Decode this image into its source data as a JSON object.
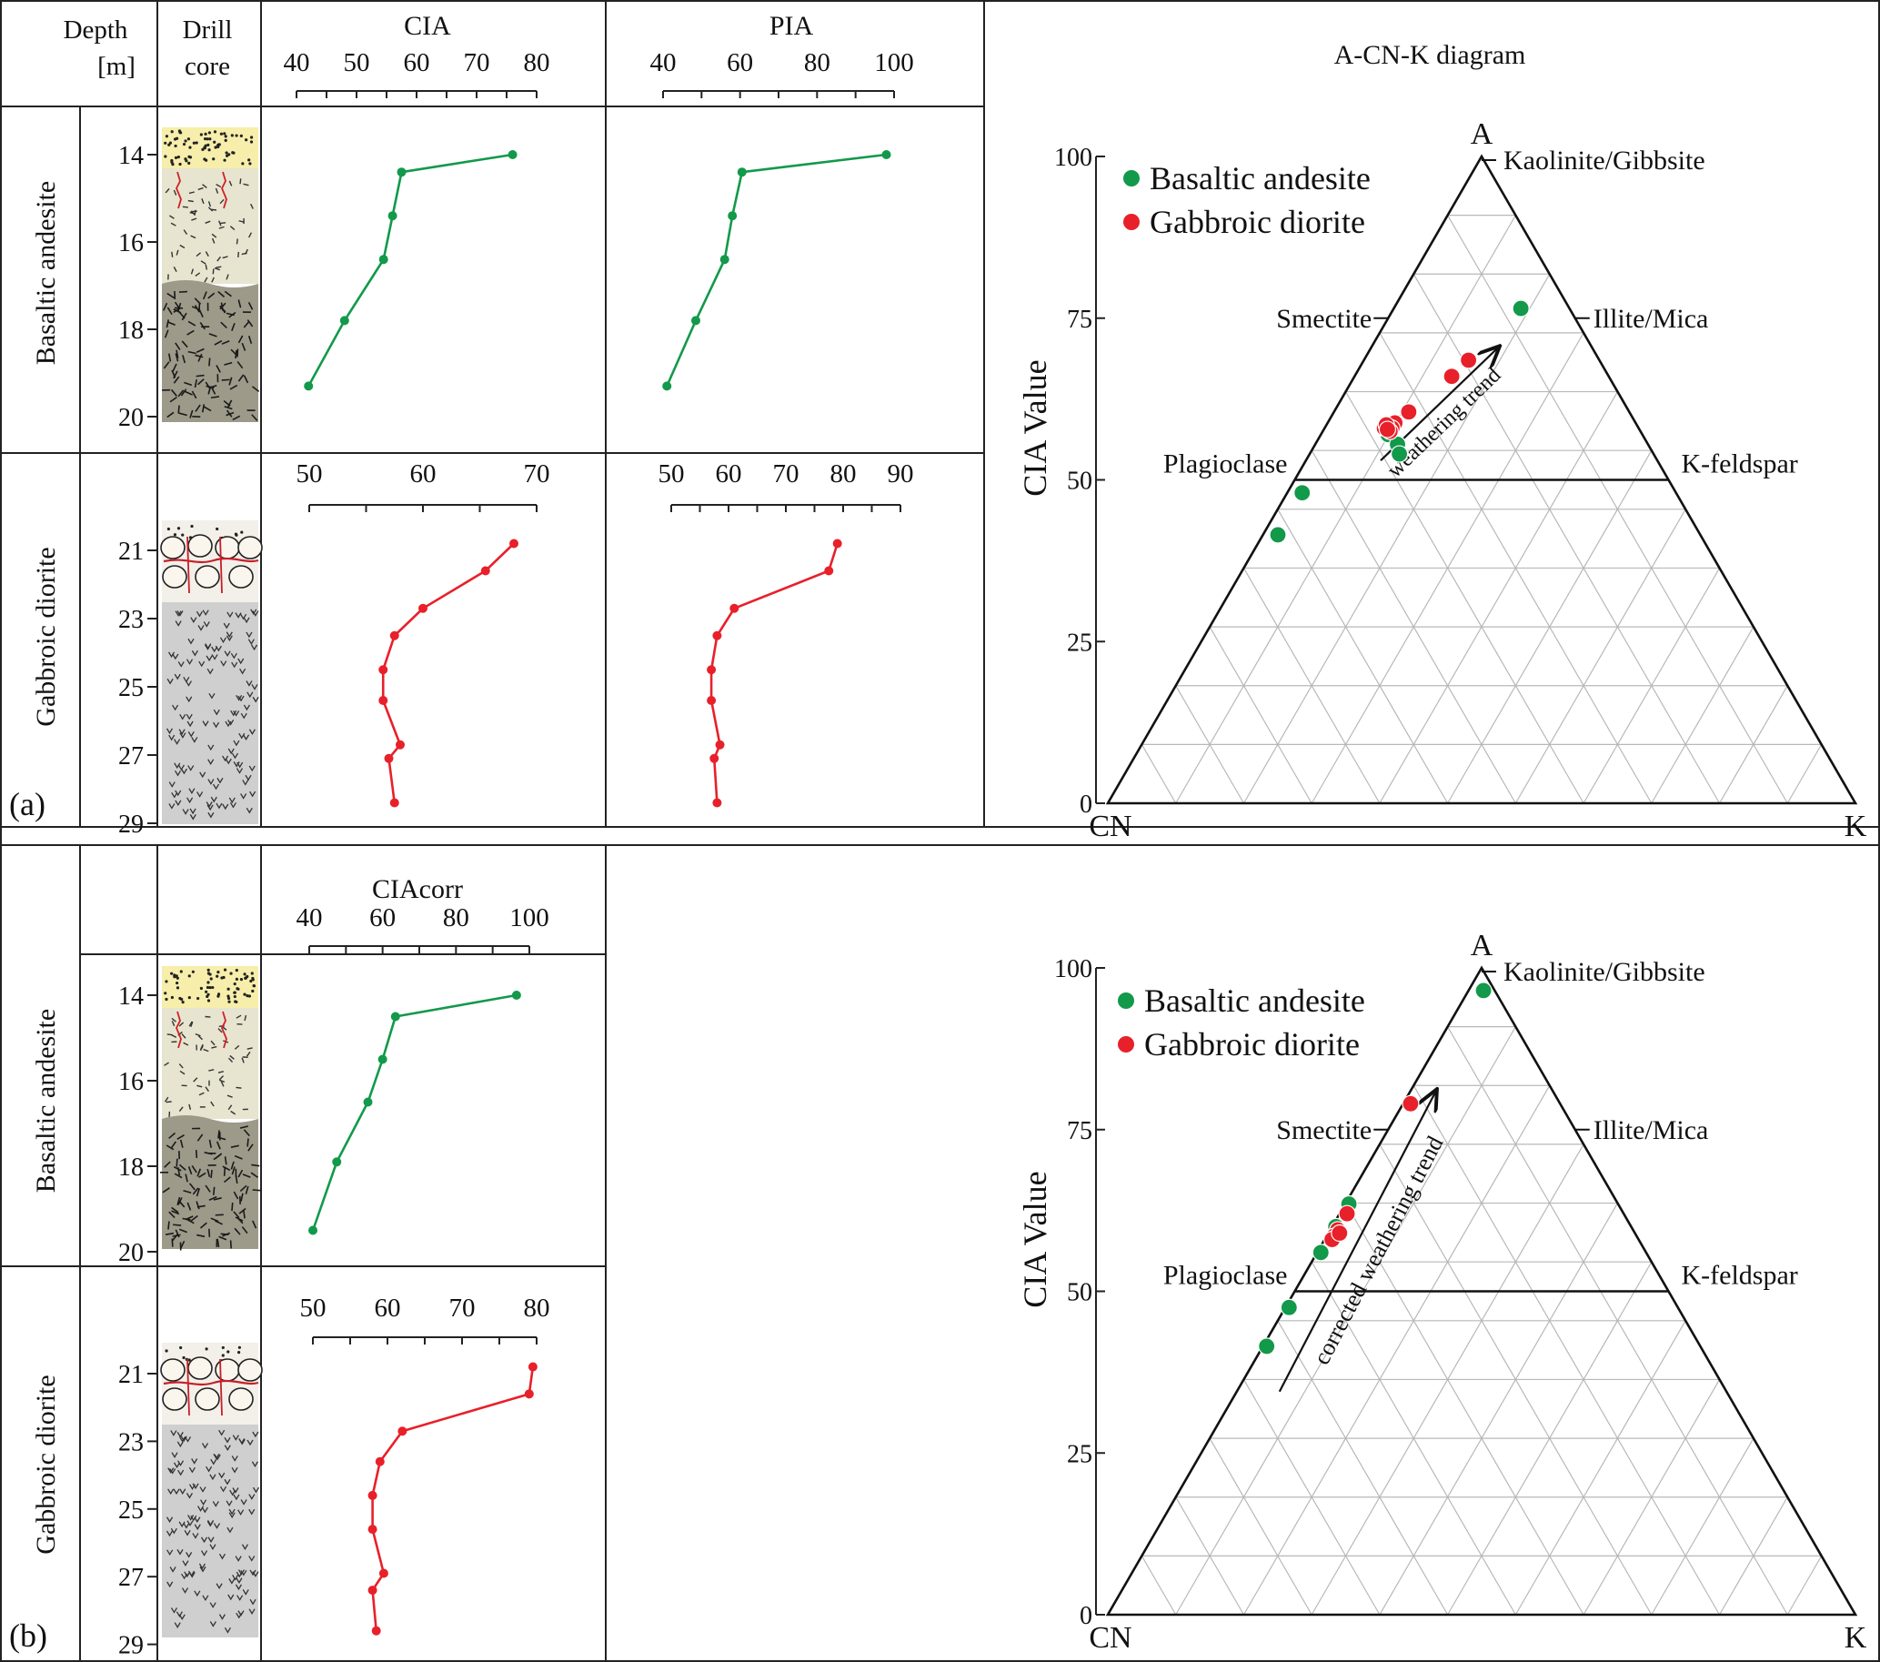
{
  "panel_a": {
    "label": "(a)",
    "headers": {
      "depth": "Depth",
      "depth_unit": "[m]",
      "core_line1": "Drill",
      "core_line2": "core",
      "cia": "CIA",
      "pia": "PIA",
      "ternary_title": "A-CN-K diagram"
    },
    "lithology": [
      "Basaltic andesite",
      "Gabbroic diorite"
    ]
  },
  "panel_b": {
    "label": "(b)",
    "headers": {
      "ciacorr": "CIAcorr"
    },
    "lithology": [
      "Basaltic andesite",
      "Gabbroic diorite"
    ]
  },
  "colors": {
    "basaltic": "#12994a",
    "gabbroic": "#e8202a",
    "sand": "#f6eeaa",
    "weathered": "#e7e5cf",
    "fresh_rock": "#9d9a8a",
    "diorite_rock": "#cfcfcf"
  },
  "depth_ticks": {
    "basaltic": [
      14,
      16,
      18,
      20
    ],
    "gabbroic": [
      21,
      23,
      25,
      27,
      29
    ]
  },
  "chart_data": [
    {
      "type": "line",
      "title": "CIA",
      "panel": "a",
      "ylabel": "Depth [m]",
      "tick_labels": [
        "40",
        "50",
        "60",
        "70",
        "80"
      ],
      "xlim": [
        40,
        80
      ],
      "series": [
        {
          "name": "Basaltic andesite",
          "x": [
            76,
            57.5,
            56,
            54.5,
            48,
            42
          ],
          "y": [
            14.0,
            14.4,
            15.4,
            16.4,
            17.8,
            19.3
          ]
        }
      ]
    },
    {
      "type": "line",
      "title": "PIA",
      "panel": "a",
      "tick_labels": [
        "40",
        "60",
        "80",
        "100"
      ],
      "xlim": [
        40,
        100
      ],
      "series": [
        {
          "name": "Basaltic andesite",
          "x": [
            98,
            60.5,
            58,
            56,
            48.5,
            41
          ],
          "y": [
            14.0,
            14.4,
            15.4,
            16.4,
            17.8,
            19.3
          ]
        }
      ]
    },
    {
      "type": "line",
      "title": "CIA",
      "panel": "a",
      "tick_labels": [
        "50",
        "60",
        "70"
      ],
      "xlim": [
        50,
        70
      ],
      "series": [
        {
          "name": "Gabbroic diorite",
          "x": [
            68,
            65.5,
            60,
            57.5,
            56.5,
            56.5,
            58,
            57,
            57.5
          ],
          "y": [
            20.8,
            21.6,
            22.7,
            23.5,
            24.5,
            25.4,
            26.7,
            27.1,
            28.4
          ]
        }
      ]
    },
    {
      "type": "line",
      "title": "PIA",
      "panel": "a",
      "tick_labels": [
        "50",
        "60",
        "70",
        "80",
        "90"
      ],
      "xlim": [
        50,
        90
      ],
      "series": [
        {
          "name": "Gabbroic diorite",
          "x": [
            79,
            77.5,
            61,
            58,
            57,
            57,
            58.5,
            57.5,
            58
          ],
          "y": [
            20.8,
            21.6,
            22.7,
            23.5,
            24.5,
            25.4,
            26.7,
            27.1,
            28.4
          ]
        }
      ]
    },
    {
      "type": "line",
      "title": "CIAcorr",
      "panel": "b",
      "ylabel": "Depth [m]",
      "tick_labels": [
        "40",
        "60",
        "80",
        "100"
      ],
      "xlim": [
        40,
        100
      ],
      "series": [
        {
          "name": "Basaltic andesite",
          "x": [
            96.5,
            63.5,
            60,
            56,
            47.5,
            41
          ],
          "y": [
            14.0,
            14.5,
            15.5,
            16.5,
            17.9,
            19.5
          ]
        }
      ]
    },
    {
      "type": "line",
      "title": "CIAcorr",
      "panel": "b",
      "tick_labels": [
        "50",
        "60",
        "70",
        "80"
      ],
      "xlim": [
        50,
        80
      ],
      "series": [
        {
          "name": "Gabbroic diorite",
          "x": [
            79.5,
            79,
            62,
            59,
            58,
            58,
            59.5,
            58,
            58.5
          ],
          "y": [
            20.8,
            21.6,
            22.7,
            23.6,
            24.6,
            25.6,
            26.9,
            27.4,
            28.6
          ]
        }
      ]
    },
    {
      "type": "scatter",
      "title": "A-CN-K diagram",
      "panel": "a",
      "ylabel": "CIA Value",
      "yticks": [
        0,
        25,
        50,
        75,
        100
      ],
      "vertices": {
        "top": "A",
        "left": "CN",
        "right": "K"
      },
      "mineral_labels": {
        "kaolinite": "Kaolinite/Gibbsite",
        "smectite": "Smectite",
        "illite": "Illite/Mica",
        "plagioclase": "Plagioclase",
        "kfeldspar": "K-feldspar"
      },
      "arrow_label": "weathering trend",
      "legend": [
        "Basaltic andesite",
        "Gabbroic diorite"
      ],
      "legend_position": "top-left",
      "series": [
        {
          "name": "Basaltic andesite",
          "points": [
            {
              "cia": 76.5,
              "k": 17
            },
            {
              "cia": 57,
              "k": 9
            },
            {
              "cia": 55.5,
              "k": 11
            },
            {
              "cia": 54,
              "k": 12
            },
            {
              "cia": 48,
              "k": 2
            },
            {
              "cia": 41.5,
              "k": 2
            }
          ]
        },
        {
          "name": "Gabbroic diorite",
          "points": [
            {
              "cia": 68.5,
              "k": 14
            },
            {
              "cia": 66,
              "k": 13
            },
            {
              "cia": 60.5,
              "k": 10
            },
            {
              "cia": 58.8,
              "k": 9
            },
            {
              "cia": 58,
              "k": 9
            },
            {
              "cia": 58,
              "k": 8
            },
            {
              "cia": 57.5,
              "k": 9
            },
            {
              "cia": 58.5,
              "k": 8
            },
            {
              "cia": 57.8,
              "k": 8.5
            }
          ]
        }
      ]
    },
    {
      "type": "scatter",
      "title": "",
      "panel": "b",
      "ylabel": "CIA Value",
      "yticks": [
        0,
        25,
        50,
        75,
        100
      ],
      "vertices": {
        "top": "A",
        "left": "CN",
        "right": "K"
      },
      "mineral_labels": {
        "kaolinite": "Kaolinite/Gibbsite",
        "smectite": "Smectite",
        "illite": "Illite/Mica",
        "plagioclase": "Plagioclase",
        "kfeldspar": "K-feldspar"
      },
      "arrow_label": "corrected weathering trend",
      "legend": [
        "Basaltic andesite",
        "Gabbroic diorite"
      ],
      "legend_position": "top-left",
      "series": [
        {
          "name": "Basaltic andesite",
          "points": [
            {
              "cia": 96.5,
              "k": 2
            },
            {
              "cia": 63.5,
              "k": 0.5
            },
            {
              "cia": 60,
              "k": 0.5
            },
            {
              "cia": 56,
              "k": 0.5
            },
            {
              "cia": 47.5,
              "k": 0.5
            },
            {
              "cia": 41.5,
              "k": 0.5
            }
          ]
        },
        {
          "name": "Gabbroic diorite",
          "points": [
            {
              "cia": 79,
              "k": 1
            },
            {
              "cia": 62,
              "k": 1
            },
            {
              "cia": 59.5,
              "k": 1
            },
            {
              "cia": 58.5,
              "k": 1
            },
            {
              "cia": 58,
              "k": 1
            },
            {
              "cia": 59,
              "k": 1.5
            }
          ]
        }
      ]
    }
  ]
}
